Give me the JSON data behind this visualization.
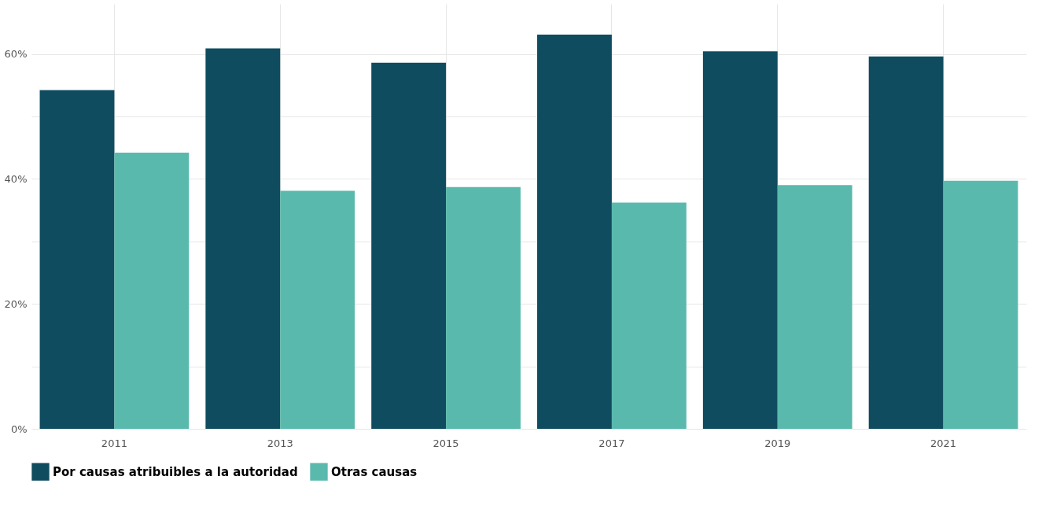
{
  "chart_data": {
    "type": "bar",
    "categories": [
      "2011",
      "2013",
      "2015",
      "2017",
      "2019",
      "2021"
    ],
    "series": [
      {
        "name": "Por causas atribuibles a la autoridad",
        "color": "#0f4c5f",
        "values": [
          54.2,
          60.9,
          58.6,
          63.1,
          60.4,
          59.6
        ]
      },
      {
        "name": "Otras causas",
        "color": "#5ab9ad",
        "values": [
          44.2,
          38.1,
          38.7,
          36.2,
          39.0,
          39.7
        ]
      }
    ],
    "ylim": [
      0,
      68
    ],
    "yticks": [
      {
        "value": 0,
        "label": "0%"
      },
      {
        "value": 10,
        "label": null
      },
      {
        "value": 20,
        "label": "20%"
      },
      {
        "value": 30,
        "label": null
      },
      {
        "value": 40,
        "label": "40%"
      },
      {
        "value": 50,
        "label": null
      },
      {
        "value": 60,
        "label": "60%"
      }
    ],
    "grid": true,
    "legend": "bottom"
  }
}
